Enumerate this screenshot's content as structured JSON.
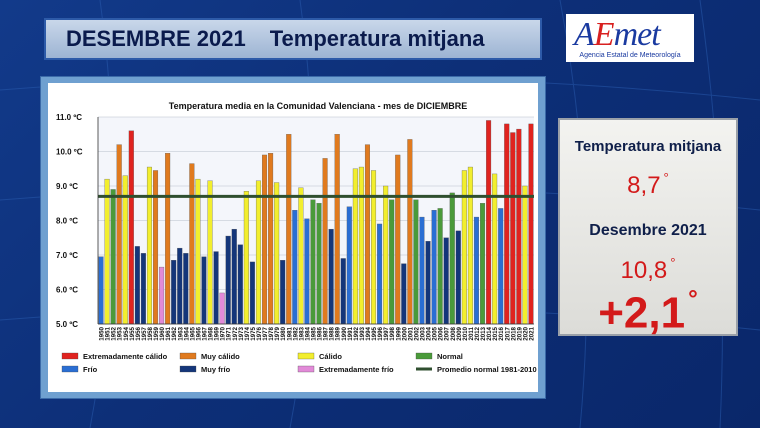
{
  "header": {
    "date_title": "DESEMBRE 2021",
    "subject_title": "Temperatura mitjana"
  },
  "logo": {
    "text": "AEmet",
    "subtitle": "Agencia Estatal de Meteorología"
  },
  "panel": {
    "label_avg": "Temperatura mitjana",
    "value_avg": "8,7",
    "label_month": "Desembre 2021",
    "value_month": "10,8",
    "anomaly": "+2,1",
    "degree_symbol": "°",
    "value_color": "#d31a1a"
  },
  "colors": {
    "R": "#e0231f",
    "O": "#e07a1e",
    "Y": "#f2ee2e",
    "G": "#4a9a3a",
    "B": "#2a6ed3",
    "D": "#14367a",
    "P": "#e28ad8",
    "normal_line": "#2f4f2f"
  },
  "chart_data": {
    "type": "bar",
    "title": "Temperatura media en la Comunidad Valenciana - mes de DICIEMBRE",
    "unit_suffix": " ºC",
    "ylim": [
      5.0,
      11.0
    ],
    "yticks": [
      "11.0 ºC",
      "10.0 ºC",
      "9.0 ºC",
      "8.0 ºC",
      "7.0 ºC",
      "6.0 ºC",
      "5.0 ºC"
    ],
    "normal_value": 8.7,
    "categories": [
      "1950",
      "1951",
      "1952",
      "1953",
      "1954",
      "1955",
      "1956",
      "1957",
      "1958",
      "1959",
      "1960",
      "1961",
      "1962",
      "1963",
      "1964",
      "1965",
      "1966",
      "1967",
      "1968",
      "1969",
      "1970",
      "1971",
      "1972",
      "1973",
      "1974",
      "1975",
      "1976",
      "1977",
      "1978",
      "1979",
      "1980",
      "1981",
      "1982",
      "1983",
      "1984",
      "1985",
      "1986",
      "1987",
      "1988",
      "1989",
      "1990",
      "1991",
      "1992",
      "1993",
      "1994",
      "1995",
      "1996",
      "1997",
      "1998",
      "1999",
      "2000",
      "2001",
      "2002",
      "2003",
      "2004",
      "2005",
      "2006",
      "2007",
      "2008",
      "2009",
      "2010",
      "2011",
      "2012",
      "2013",
      "2014",
      "2015",
      "2016",
      "2017",
      "2018",
      "2019",
      "2020",
      "2021"
    ],
    "values": [
      6.95,
      9.2,
      8.9,
      10.2,
      9.3,
      10.6,
      7.25,
      7.05,
      9.55,
      9.45,
      6.65,
      9.95,
      6.85,
      7.2,
      7.05,
      9.65,
      9.2,
      6.95,
      9.15,
      7.1,
      5.9,
      7.55,
      7.75,
      7.3,
      8.85,
      6.8,
      9.15,
      9.9,
      9.95,
      9.1,
      6.85,
      10.5,
      8.3,
      8.95,
      8.05,
      8.6,
      8.5,
      9.8,
      7.75,
      10.5,
      6.9,
      8.4,
      9.5,
      9.55,
      10.2,
      9.45,
      7.9,
      9.0,
      8.6,
      9.9,
      6.75,
      10.35,
      8.6,
      8.1,
      7.4,
      8.3,
      8.35,
      7.5,
      8.8,
      7.7,
      9.45,
      9.55,
      8.1,
      8.5,
      10.9,
      9.35,
      8.35,
      10.8,
      10.55,
      10.65,
      9.0,
      10.8
    ],
    "classes": [
      "B",
      "Y",
      "G",
      "O",
      "Y",
      "R",
      "D",
      "D",
      "Y",
      "O",
      "P",
      "O",
      "D",
      "D",
      "D",
      "O",
      "Y",
      "D",
      "Y",
      "D",
      "P",
      "D",
      "D",
      "D",
      "Y",
      "D",
      "Y",
      "O",
      "O",
      "Y",
      "D",
      "O",
      "B",
      "Y",
      "B",
      "G",
      "G",
      "O",
      "D",
      "O",
      "D",
      "B",
      "Y",
      "Y",
      "O",
      "Y",
      "B",
      "Y",
      "G",
      "O",
      "D",
      "O",
      "G",
      "B",
      "D",
      "B",
      "G",
      "D",
      "G",
      "D",
      "Y",
      "Y",
      "B",
      "G",
      "R",
      "Y",
      "B",
      "R",
      "R",
      "R",
      "Y",
      "R"
    ],
    "legend": [
      {
        "key": "R",
        "label": "Extremadamente cálido"
      },
      {
        "key": "O",
        "label": "Muy cálido"
      },
      {
        "key": "Y",
        "label": "Cálido"
      },
      {
        "key": "G",
        "label": "Normal"
      },
      {
        "key": "B",
        "label": "Frío"
      },
      {
        "key": "D",
        "label": "Muy frío"
      },
      {
        "key": "P",
        "label": "Extremadamente frío"
      },
      {
        "key": "normal_line",
        "label": "Promedio normal 1981-2010"
      }
    ]
  }
}
